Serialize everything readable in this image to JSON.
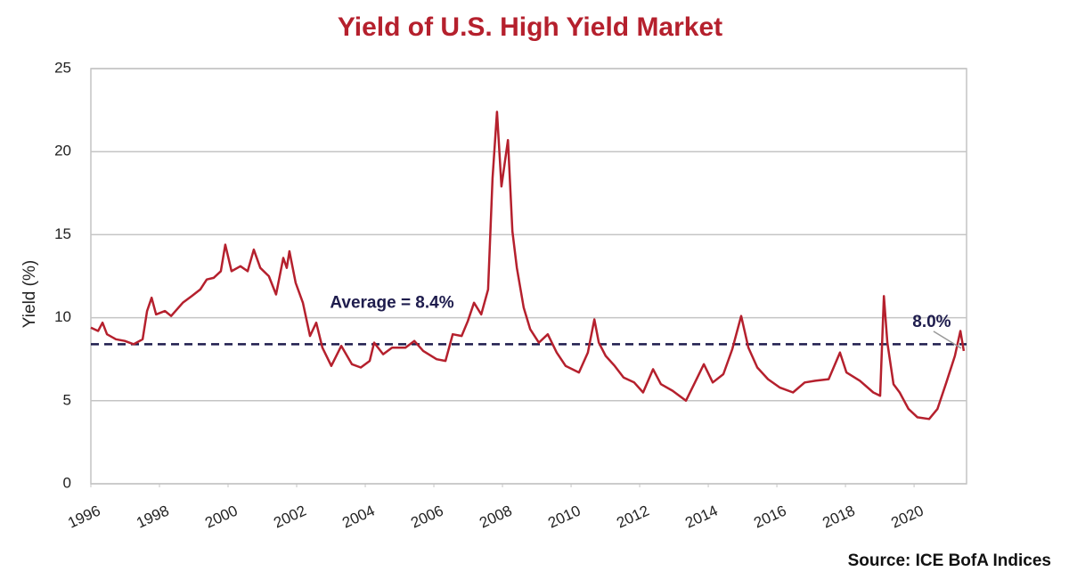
{
  "chart_data": {
    "type": "line",
    "title": "Yield of U.S. High Yield Market",
    "y_label": "Yield (%)",
    "source": "Source: ICE BofA Indices",
    "average": 8.4,
    "average_label": "Average = 8.4%",
    "end_label": "8.0%",
    "xlim": [
      1996,
      2021.53
    ],
    "xticks": [
      1996,
      1998,
      2000,
      2002,
      2004,
      2006,
      2008,
      2010,
      2012,
      2014,
      2016,
      2018,
      2020
    ],
    "ylim": [
      0,
      25
    ],
    "yticks": [
      0,
      5,
      10,
      15,
      20,
      25
    ],
    "grid": true,
    "series": [
      {
        "name": "Yield",
        "color": "#b5202d",
        "x": [
          1996.0,
          1996.21,
          1996.34,
          1996.47,
          1996.73,
          1996.99,
          1997.25,
          1997.51,
          1997.64,
          1997.77,
          1997.9,
          1998.16,
          1998.34,
          1998.68,
          1998.94,
          1999.19,
          1999.38,
          1999.58,
          1999.79,
          1999.92,
          2000.1,
          2000.36,
          2000.57,
          2000.75,
          2000.94,
          2001.19,
          2001.4,
          2001.61,
          2001.71,
          2001.79,
          2001.97,
          2002.18,
          2002.39,
          2002.57,
          2002.75,
          2003.01,
          2003.3,
          2003.61,
          2003.87,
          2004.13,
          2004.26,
          2004.52,
          2004.78,
          2005.17,
          2005.43,
          2005.69,
          2006.08,
          2006.34,
          2006.55,
          2006.81,
          2006.99,
          2007.17,
          2007.38,
          2007.58,
          2007.71,
          2007.84,
          2007.97,
          2008.16,
          2008.29,
          2008.42,
          2008.62,
          2008.81,
          2009.06,
          2009.32,
          2009.58,
          2009.84,
          2010.23,
          2010.49,
          2010.68,
          2010.81,
          2011.01,
          2011.27,
          2011.53,
          2011.84,
          2012.1,
          2012.39,
          2012.62,
          2012.96,
          2013.35,
          2013.61,
          2013.87,
          2014.13,
          2014.44,
          2014.7,
          2014.96,
          2015.17,
          2015.43,
          2015.74,
          2016.08,
          2016.47,
          2016.81,
          2017.12,
          2017.51,
          2017.84,
          2018.03,
          2018.42,
          2018.81,
          2019.01,
          2019.12,
          2019.22,
          2019.4,
          2019.58,
          2019.84,
          2020.1,
          2020.44,
          2020.68,
          2020.94,
          2021.19,
          2021.35,
          2021.45
        ],
        "values": [
          9.4,
          9.2,
          9.7,
          9.0,
          8.7,
          8.6,
          8.4,
          8.7,
          10.4,
          11.2,
          10.2,
          10.4,
          10.1,
          10.9,
          11.3,
          11.7,
          12.3,
          12.4,
          12.8,
          14.4,
          12.8,
          13.1,
          12.8,
          14.1,
          13.0,
          12.5,
          11.4,
          13.6,
          13.0,
          14.0,
          12.1,
          10.9,
          8.9,
          9.7,
          8.2,
          7.1,
          8.3,
          7.2,
          7.0,
          7.4,
          8.5,
          7.8,
          8.2,
          8.2,
          8.6,
          8.0,
          7.5,
          7.4,
          9.0,
          8.9,
          9.8,
          10.9,
          10.2,
          11.7,
          18.4,
          22.4,
          17.9,
          20.7,
          15.2,
          13.0,
          10.6,
          9.3,
          8.5,
          9.0,
          7.9,
          7.1,
          6.7,
          7.9,
          9.9,
          8.5,
          7.7,
          7.1,
          6.4,
          6.1,
          5.5,
          6.9,
          6.0,
          5.6,
          5.0,
          6.1,
          7.2,
          6.1,
          6.6,
          8.1,
          10.1,
          8.2,
          7.0,
          6.3,
          5.8,
          5.5,
          6.1,
          6.2,
          6.3,
          7.9,
          6.7,
          6.2,
          5.5,
          5.3,
          11.3,
          8.5,
          6.0,
          5.5,
          4.5,
          4.0,
          3.9,
          4.5,
          6.1,
          7.7,
          9.2,
          8.0
        ]
      }
    ]
  }
}
